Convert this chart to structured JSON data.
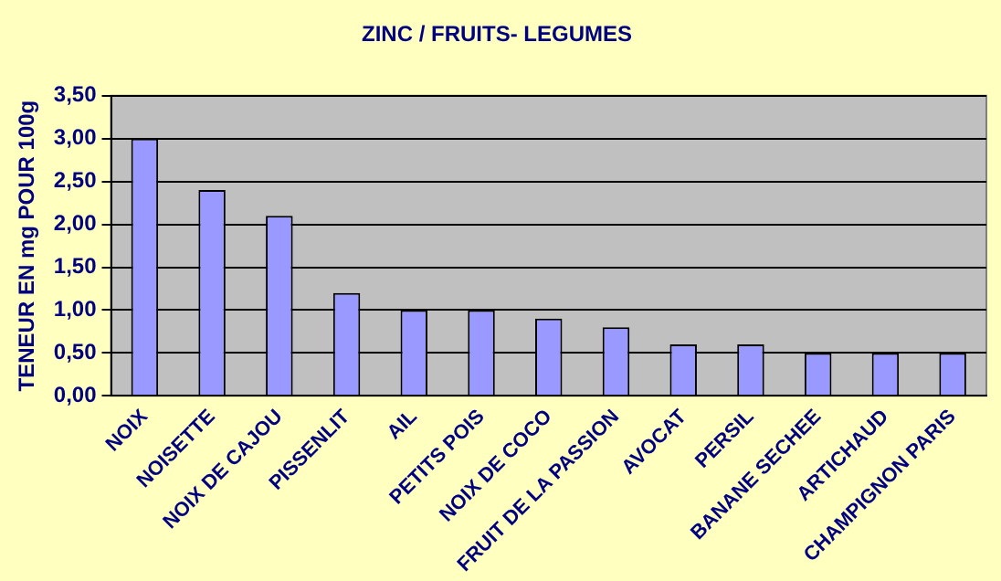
{
  "chart_data": {
    "type": "bar",
    "title": "ZINC / FRUITS- LEGUMES",
    "ylabel": "TENEUR EN mg POUR 100g",
    "categories": [
      "NOIX",
      "NOISETTE",
      "NOIX DE CAJOU",
      "PISSENLIT",
      "AIL",
      "PETITS POIS",
      "NOIX DE COCO",
      "FRUIT DE LA PASSION",
      "AVOCAT",
      "PERSIL",
      "BANANE SECHEE",
      "ARTICHAUD",
      "CHAMPIGNON PARIS"
    ],
    "values": [
      3.0,
      2.4,
      2.1,
      1.2,
      1.0,
      1.0,
      0.9,
      0.8,
      0.6,
      0.6,
      0.5,
      0.5,
      0.5
    ],
    "color": "#9999ff",
    "ylim": [
      0,
      3.5
    ],
    "yticks": [
      {
        "value": 0,
        "label": "0,00"
      },
      {
        "value": 0.5,
        "label": "0,50"
      },
      {
        "value": 1,
        "label": "1,00"
      },
      {
        "value": 1.5,
        "label": "1,50"
      },
      {
        "value": 2,
        "label": "2,00"
      },
      {
        "value": 2.5,
        "label": "2,50"
      },
      {
        "value": 3,
        "label": "3,00"
      },
      {
        "value": 3.5,
        "label": "3,50"
      }
    ],
    "grid": "y",
    "legend": false
  }
}
